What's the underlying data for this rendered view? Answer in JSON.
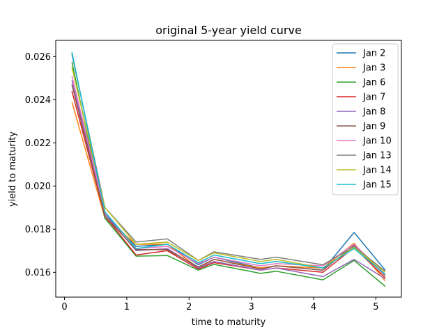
{
  "chart_data": {
    "type": "line",
    "title": "original 5-year yield curve",
    "xlabel": "time to maturity",
    "ylabel": "yield to maturity",
    "xlim": [
      -0.14,
      5.41
    ],
    "ylim": [
      0.01485,
      0.02675
    ],
    "xticks": [
      0,
      1,
      2,
      3,
      4,
      5
    ],
    "xtick_labels": [
      "0",
      "1",
      "2",
      "3",
      "4",
      "5"
    ],
    "yticks": [
      0.016,
      0.018,
      0.02,
      0.022,
      0.024,
      0.026
    ],
    "ytick_labels": [
      "0.016",
      "0.018",
      "0.020",
      "0.022",
      "0.024",
      "0.026"
    ],
    "legend_position": "upper right",
    "x": [
      0.12,
      0.65,
      1.15,
      1.65,
      2.15,
      2.4,
      3.15,
      3.4,
      4.15,
      4.65,
      5.15
    ],
    "series": [
      {
        "name": "Jan 2",
        "color": "#1f77b4",
        "values": [
          0.0262,
          0.0187,
          0.0172,
          0.0173,
          0.01635,
          0.0167,
          0.0162,
          0.0163,
          0.0161,
          0.01785,
          0.0161
        ]
      },
      {
        "name": "Jan 3",
        "color": "#ff7f0e",
        "values": [
          0.0239,
          0.0185,
          0.0173,
          0.0173,
          0.0162,
          0.0166,
          0.0162,
          0.0163,
          0.0162,
          0.01735,
          0.0156
        ]
      },
      {
        "name": "Jan 6",
        "color": "#2ca02c",
        "values": [
          0.02575,
          0.0185,
          0.01675,
          0.01678,
          0.0161,
          0.01637,
          0.01595,
          0.01605,
          0.01565,
          0.01655,
          0.01535
        ]
      },
      {
        "name": "Jan 7",
        "color": "#d62728",
        "values": [
          0.0244,
          0.0186,
          0.0168,
          0.017,
          0.01615,
          0.01645,
          0.0161,
          0.0162,
          0.016,
          0.01715,
          0.01575
        ]
      },
      {
        "name": "Jan 8",
        "color": "#9467bd",
        "values": [
          0.0249,
          0.0187,
          0.017,
          0.0171,
          0.0162,
          0.0165,
          0.0161,
          0.0162,
          0.0158,
          0.0166,
          0.0157
        ]
      },
      {
        "name": "Jan 9",
        "color": "#8c564b",
        "values": [
          0.0247,
          0.0186,
          0.01705,
          0.01705,
          0.01625,
          0.0166,
          0.01615,
          0.0163,
          0.0161,
          0.01725,
          0.01585
        ]
      },
      {
        "name": "Jan 10",
        "color": "#e377c2",
        "values": [
          0.0251,
          0.0188,
          0.0171,
          0.0172,
          0.0164,
          0.0167,
          0.0163,
          0.0164,
          0.0163,
          0.0173,
          0.0159
        ]
      },
      {
        "name": "Jan 13",
        "color": "#7f7f7f",
        "values": [
          0.0261,
          0.019,
          0.0174,
          0.01755,
          0.01655,
          0.01695,
          0.0166,
          0.0167,
          0.01635,
          0.0172,
          0.01605
        ]
      },
      {
        "name": "Jan 14",
        "color": "#bcbd22",
        "values": [
          0.0255,
          0.019,
          0.0173,
          0.0174,
          0.01655,
          0.0169,
          0.0165,
          0.0166,
          0.0162,
          0.01715,
          0.016
        ]
      },
      {
        "name": "Jan 15",
        "color": "#17becf",
        "values": [
          0.0262,
          0.0188,
          0.0171,
          0.0173,
          0.01645,
          0.0168,
          0.0164,
          0.0165,
          0.0162,
          0.0171,
          0.0159
        ]
      }
    ]
  }
}
